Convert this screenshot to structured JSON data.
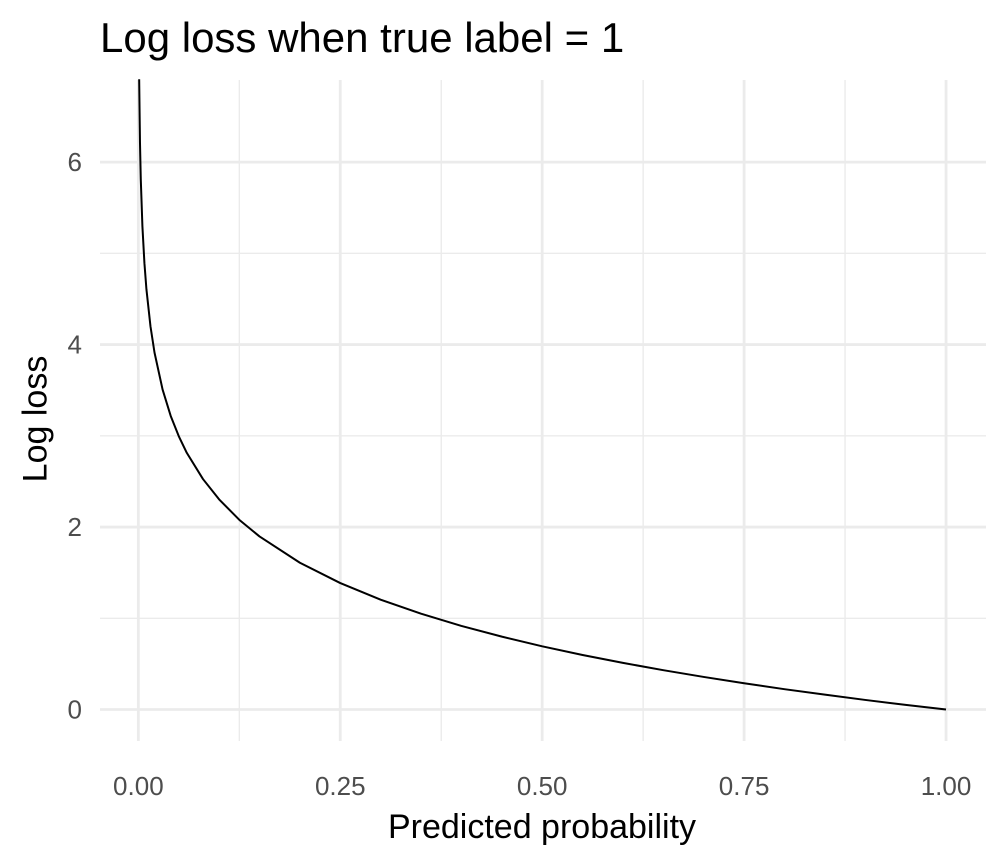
{
  "chart_data": {
    "type": "line",
    "title": "Log loss when true label = 1",
    "xlabel": "Predicted probability",
    "ylabel": "Log loss",
    "xlim": [
      -0.0475,
      1.0495
    ],
    "ylim": [
      -0.345,
      6.9
    ],
    "x_ticks": [
      0.0,
      0.25,
      0.5,
      0.75,
      1.0
    ],
    "x_tick_labels": [
      "0.00",
      "0.25",
      "0.50",
      "0.75",
      "1.00"
    ],
    "y_ticks": [
      0,
      2,
      4,
      6
    ],
    "y_tick_labels": [
      "0",
      "2",
      "4",
      "6"
    ],
    "x_minor_ticks": [
      0.125,
      0.375,
      0.625,
      0.875
    ],
    "y_minor_ticks": [
      1,
      3,
      5
    ],
    "grid": true,
    "legend": "none",
    "colors": {
      "line": "#000000",
      "grid": "#ebebeb",
      "tick_text": "#4d4d4d"
    },
    "series": [
      {
        "x": [
          0.001,
          0.002,
          0.003,
          0.005,
          0.0075,
          0.01,
          0.015,
          0.02,
          0.03,
          0.04,
          0.05,
          0.06,
          0.08,
          0.1,
          0.125,
          0.15,
          0.2,
          0.25,
          0.3,
          0.35,
          0.4,
          0.45,
          0.5,
          0.55,
          0.6,
          0.65,
          0.7,
          0.75,
          0.8,
          0.85,
          0.9,
          0.95,
          1.0
        ],
        "values": [
          6.908,
          6.215,
          5.809,
          5.298,
          4.893,
          4.605,
          4.2,
          3.912,
          3.507,
          3.219,
          2.996,
          2.813,
          2.526,
          2.303,
          2.079,
          1.897,
          1.609,
          1.386,
          1.204,
          1.05,
          0.916,
          0.799,
          0.693,
          0.598,
          0.511,
          0.431,
          0.357,
          0.288,
          0.223,
          0.163,
          0.105,
          0.051,
          0.0
        ]
      }
    ]
  }
}
